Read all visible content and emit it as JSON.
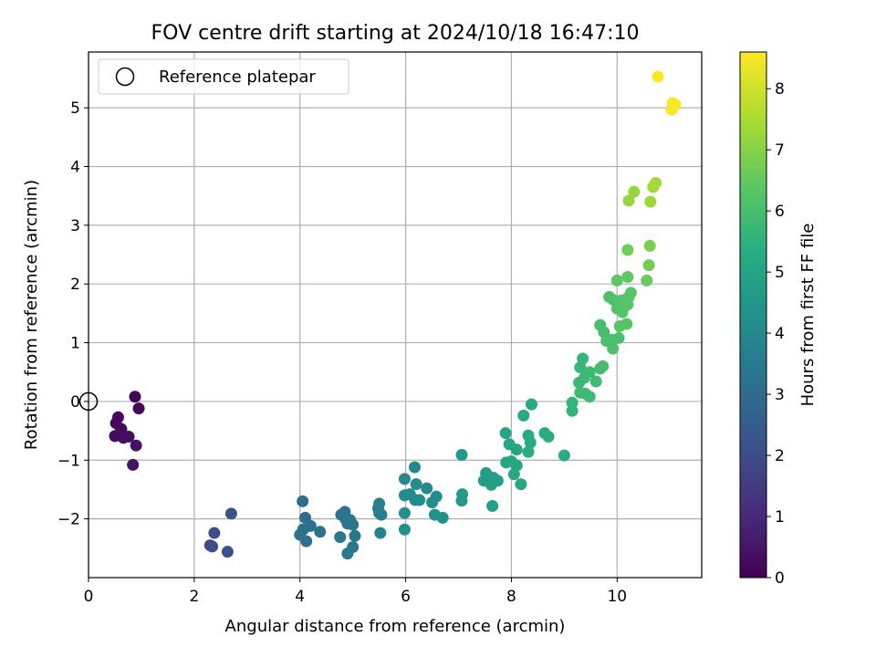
{
  "chart_data": {
    "type": "scatter",
    "title": "FOV centre drift starting at 2024/10/18 16:47:10",
    "xlabel": "Angular distance from reference (arcmin)",
    "ylabel": "Rotation from reference (arcmin)",
    "xlim": [
      0,
      11.6
    ],
    "ylim": [
      -3.0,
      5.95
    ],
    "x_ticks": [
      0,
      2,
      4,
      6,
      8,
      10
    ],
    "y_ticks": [
      -2,
      -1,
      0,
      1,
      2,
      3,
      4,
      5
    ],
    "grid": true,
    "legend": {
      "position": "top-left",
      "entries": [
        {
          "label": "Reference platepar",
          "marker": "open-circle"
        }
      ]
    },
    "reference_point": {
      "x": 0,
      "y": 0
    },
    "colorbar": {
      "label": "Hours from first FF file",
      "colormap": "viridis",
      "range": [
        0,
        8.6
      ],
      "ticks": [
        0,
        1,
        2,
        3,
        4,
        5,
        6,
        7,
        8
      ]
    },
    "points": [
      {
        "x": 0.88,
        "y": 0.08,
        "c": 0.1
      },
      {
        "x": 0.95,
        "y": -0.12,
        "c": 0.15
      },
      {
        "x": 0.56,
        "y": -0.27,
        "c": 0.2
      },
      {
        "x": 0.52,
        "y": -0.37,
        "c": 0.2
      },
      {
        "x": 0.62,
        "y": -0.47,
        "c": 0.25
      },
      {
        "x": 0.58,
        "y": -0.55,
        "c": 0.25
      },
      {
        "x": 0.5,
        "y": -0.59,
        "c": 0.3
      },
      {
        "x": 0.66,
        "y": -0.62,
        "c": 0.3
      },
      {
        "x": 0.76,
        "y": -0.6,
        "c": 0.35
      },
      {
        "x": 0.9,
        "y": -0.75,
        "c": 0.4
      },
      {
        "x": 0.84,
        "y": -1.08,
        "c": 0.45
      },
      {
        "x": 2.3,
        "y": -2.45,
        "c": 2.0
      },
      {
        "x": 2.34,
        "y": -2.47,
        "c": 2.0
      },
      {
        "x": 2.38,
        "y": -2.24,
        "c": 2.05
      },
      {
        "x": 2.63,
        "y": -2.56,
        "c": 2.1
      },
      {
        "x": 2.7,
        "y": -1.91,
        "c": 2.15
      },
      {
        "x": 4.05,
        "y": -1.7,
        "c": 3.1
      },
      {
        "x": 4.1,
        "y": -1.98,
        "c": 3.1
      },
      {
        "x": 4.2,
        "y": -2.12,
        "c": 3.15
      },
      {
        "x": 4.06,
        "y": -2.18,
        "c": 3.15
      },
      {
        "x": 4.0,
        "y": -2.27,
        "c": 3.2
      },
      {
        "x": 4.12,
        "y": -2.38,
        "c": 3.2
      },
      {
        "x": 4.38,
        "y": -2.22,
        "c": 3.25
      },
      {
        "x": 4.78,
        "y": -1.93,
        "c": 3.3
      },
      {
        "x": 4.85,
        "y": -1.88,
        "c": 3.3
      },
      {
        "x": 4.86,
        "y": -2.0,
        "c": 3.35
      },
      {
        "x": 4.95,
        "y": -2.02,
        "c": 3.35
      },
      {
        "x": 4.9,
        "y": -2.08,
        "c": 3.4
      },
      {
        "x": 5.0,
        "y": -2.1,
        "c": 3.4
      },
      {
        "x": 4.76,
        "y": -2.31,
        "c": 3.45
      },
      {
        "x": 5.04,
        "y": -2.29,
        "c": 3.45
      },
      {
        "x": 5.0,
        "y": -2.48,
        "c": 3.5
      },
      {
        "x": 4.9,
        "y": -2.59,
        "c": 3.5
      },
      {
        "x": 5.5,
        "y": -1.74,
        "c": 3.6
      },
      {
        "x": 5.48,
        "y": -1.82,
        "c": 3.6
      },
      {
        "x": 5.5,
        "y": -1.9,
        "c": 3.65
      },
      {
        "x": 5.54,
        "y": -1.93,
        "c": 3.65
      },
      {
        "x": 5.52,
        "y": -2.24,
        "c": 3.7
      },
      {
        "x": 5.98,
        "y": -1.32,
        "c": 4.0
      },
      {
        "x": 6.17,
        "y": -1.12,
        "c": 4.0
      },
      {
        "x": 6.2,
        "y": -1.41,
        "c": 4.05
      },
      {
        "x": 6.4,
        "y": -1.48,
        "c": 4.05
      },
      {
        "x": 5.98,
        "y": -1.6,
        "c": 4.1
      },
      {
        "x": 6.08,
        "y": -1.58,
        "c": 4.1
      },
      {
        "x": 6.18,
        "y": -1.68,
        "c": 4.15
      },
      {
        "x": 6.26,
        "y": -1.68,
        "c": 4.15
      },
      {
        "x": 6.5,
        "y": -1.72,
        "c": 4.2
      },
      {
        "x": 6.58,
        "y": -1.62,
        "c": 4.2
      },
      {
        "x": 5.98,
        "y": -1.9,
        "c": 4.25
      },
      {
        "x": 6.55,
        "y": -1.93,
        "c": 4.25
      },
      {
        "x": 6.7,
        "y": -1.98,
        "c": 4.3
      },
      {
        "x": 5.98,
        "y": -2.18,
        "c": 4.3
      },
      {
        "x": 7.06,
        "y": -0.91,
        "c": 4.6
      },
      {
        "x": 7.07,
        "y": -1.58,
        "c": 4.6
      },
      {
        "x": 7.06,
        "y": -1.69,
        "c": 4.65
      },
      {
        "x": 7.52,
        "y": -1.22,
        "c": 4.7
      },
      {
        "x": 7.48,
        "y": -1.35,
        "c": 4.7
      },
      {
        "x": 7.58,
        "y": -1.3,
        "c": 4.75
      },
      {
        "x": 7.66,
        "y": -1.3,
        "c": 4.75
      },
      {
        "x": 7.62,
        "y": -1.42,
        "c": 4.8
      },
      {
        "x": 7.74,
        "y": -1.35,
        "c": 4.8
      },
      {
        "x": 7.64,
        "y": -1.78,
        "c": 4.85
      },
      {
        "x": 7.89,
        "y": -0.54,
        "c": 5.0
      },
      {
        "x": 7.96,
        "y": -0.73,
        "c": 5.0
      },
      {
        "x": 7.9,
        "y": -1.04,
        "c": 5.05
      },
      {
        "x": 8.1,
        "y": -0.82,
        "c": 5.05
      },
      {
        "x": 8.0,
        "y": -1.02,
        "c": 5.1
      },
      {
        "x": 8.1,
        "y": -1.09,
        "c": 5.1
      },
      {
        "x": 8.05,
        "y": -1.24,
        "c": 5.15
      },
      {
        "x": 8.18,
        "y": -1.41,
        "c": 5.15
      },
      {
        "x": 8.23,
        "y": -0.24,
        "c": 5.2
      },
      {
        "x": 8.38,
        "y": -0.05,
        "c": 5.2
      },
      {
        "x": 8.32,
        "y": -0.58,
        "c": 5.25
      },
      {
        "x": 8.36,
        "y": -0.7,
        "c": 5.25
      },
      {
        "x": 8.32,
        "y": -0.86,
        "c": 5.3
      },
      {
        "x": 8.63,
        "y": -0.54,
        "c": 5.3
      },
      {
        "x": 8.7,
        "y": -0.6,
        "c": 5.35
      },
      {
        "x": 9.0,
        "y": -0.92,
        "c": 5.35
      },
      {
        "x": 9.15,
        "y": -0.02,
        "c": 5.6
      },
      {
        "x": 9.15,
        "y": -0.16,
        "c": 5.6
      },
      {
        "x": 9.3,
        "y": 0.58,
        "c": 5.7
      },
      {
        "x": 9.35,
        "y": 0.73,
        "c": 5.7
      },
      {
        "x": 9.28,
        "y": 0.32,
        "c": 5.75
      },
      {
        "x": 9.38,
        "y": 0.4,
        "c": 5.75
      },
      {
        "x": 9.48,
        "y": 0.5,
        "c": 5.8
      },
      {
        "x": 9.3,
        "y": 0.15,
        "c": 5.8
      },
      {
        "x": 9.4,
        "y": 0.13,
        "c": 5.85
      },
      {
        "x": 9.48,
        "y": 0.08,
        "c": 5.85
      },
      {
        "x": 9.6,
        "y": 0.34,
        "c": 5.9
      },
      {
        "x": 9.68,
        "y": 0.56,
        "c": 5.9
      },
      {
        "x": 9.73,
        "y": 0.6,
        "c": 5.95
      },
      {
        "x": 9.68,
        "y": 1.3,
        "c": 6.0
      },
      {
        "x": 9.75,
        "y": 1.18,
        "c": 6.0
      },
      {
        "x": 9.8,
        "y": 1.03,
        "c": 6.05
      },
      {
        "x": 9.9,
        "y": 1.05,
        "c": 6.05
      },
      {
        "x": 9.92,
        "y": 0.9,
        "c": 6.1
      },
      {
        "x": 10.03,
        "y": 1.08,
        "c": 6.1
      },
      {
        "x": 9.85,
        "y": 1.78,
        "c": 6.15
      },
      {
        "x": 9.93,
        "y": 1.73,
        "c": 6.15
      },
      {
        "x": 10.0,
        "y": 1.58,
        "c": 6.2
      },
      {
        "x": 10.08,
        "y": 1.72,
        "c": 6.2
      },
      {
        "x": 10.1,
        "y": 1.52,
        "c": 6.25
      },
      {
        "x": 10.05,
        "y": 1.28,
        "c": 6.25
      },
      {
        "x": 10.18,
        "y": 1.32,
        "c": 6.3
      },
      {
        "x": 10.2,
        "y": 1.65,
        "c": 6.3
      },
      {
        "x": 10.22,
        "y": 1.78,
        "c": 6.35
      },
      {
        "x": 10.26,
        "y": 1.85,
        "c": 6.35
      },
      {
        "x": 10.0,
        "y": 2.06,
        "c": 6.4
      },
      {
        "x": 10.2,
        "y": 2.12,
        "c": 6.45
      },
      {
        "x": 10.2,
        "y": 2.58,
        "c": 6.7
      },
      {
        "x": 10.56,
        "y": 2.06,
        "c": 6.6
      },
      {
        "x": 10.6,
        "y": 2.32,
        "c": 6.7
      },
      {
        "x": 10.62,
        "y": 2.65,
        "c": 6.8
      },
      {
        "x": 10.22,
        "y": 3.42,
        "c": 7.2
      },
      {
        "x": 10.32,
        "y": 3.57,
        "c": 7.2
      },
      {
        "x": 10.63,
        "y": 3.4,
        "c": 7.3
      },
      {
        "x": 10.68,
        "y": 3.65,
        "c": 7.35
      },
      {
        "x": 10.73,
        "y": 3.72,
        "c": 7.4
      },
      {
        "x": 10.77,
        "y": 5.53,
        "c": 8.6
      },
      {
        "x": 11.05,
        "y": 5.08,
        "c": 8.5
      },
      {
        "x": 11.1,
        "y": 5.05,
        "c": 8.5
      },
      {
        "x": 11.03,
        "y": 4.97,
        "c": 8.55
      }
    ]
  }
}
